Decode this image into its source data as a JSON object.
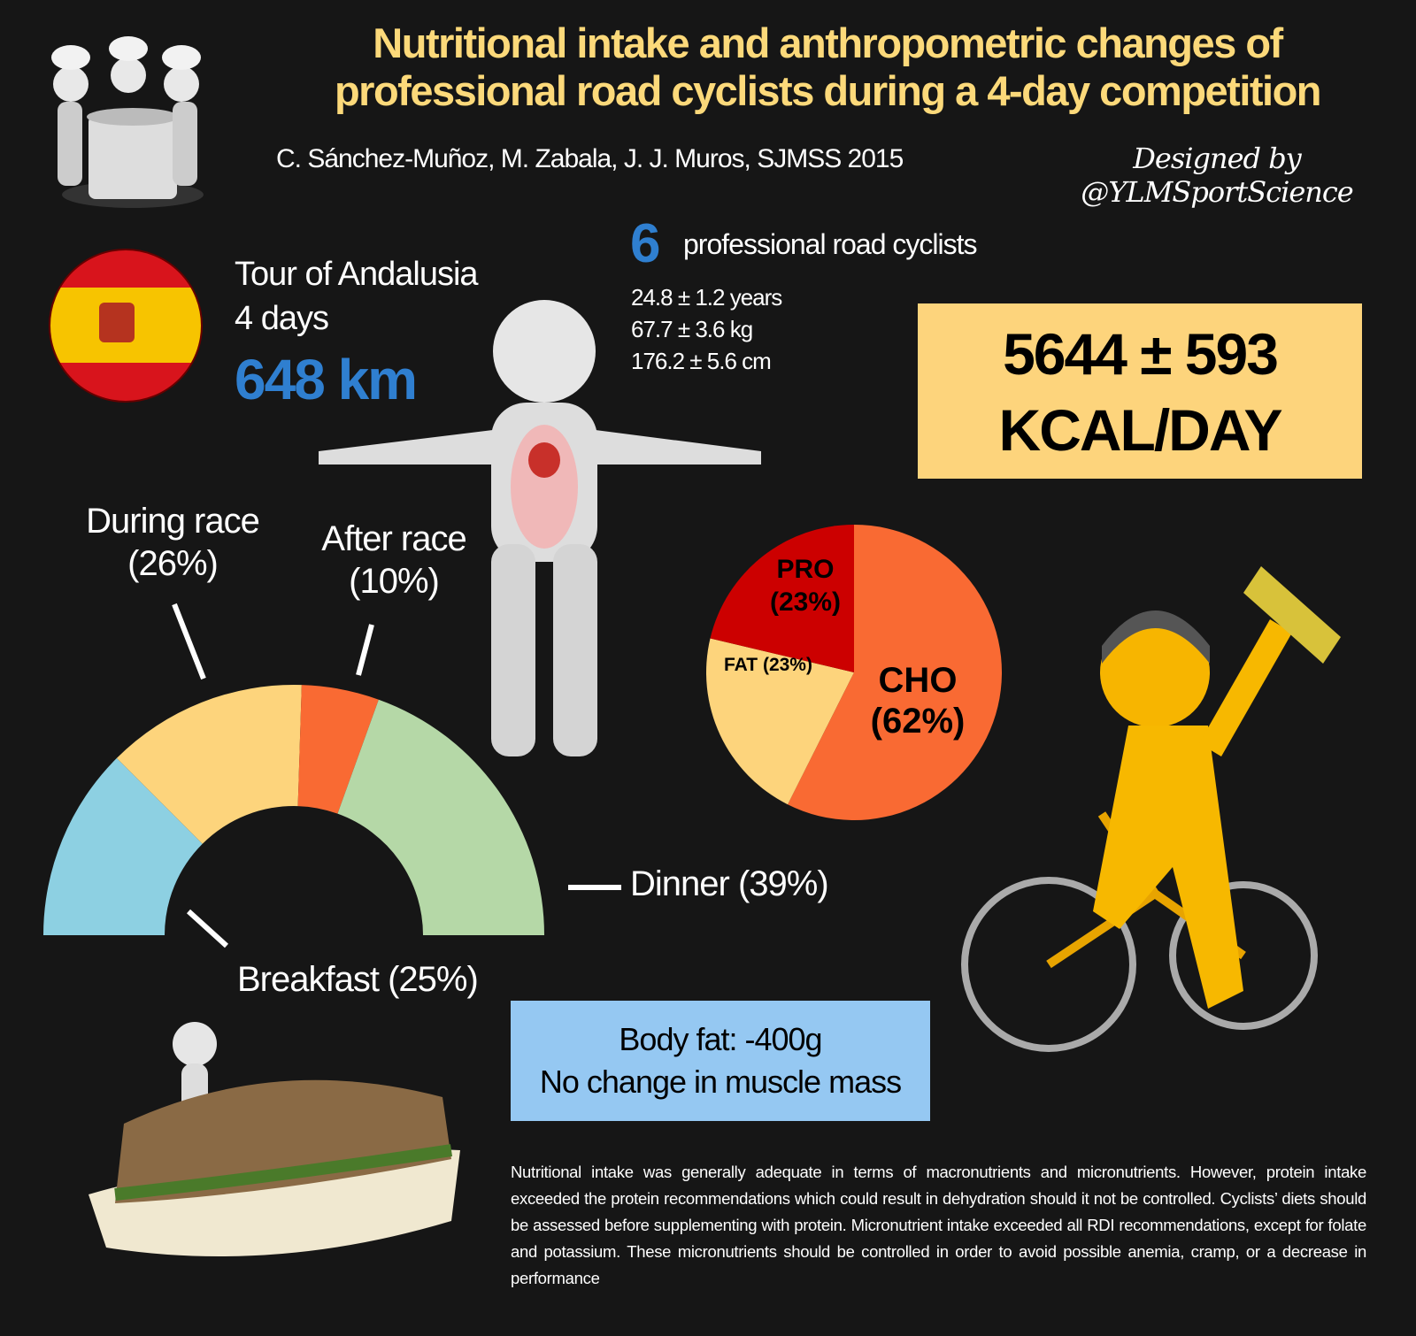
{
  "header": {
    "title": "Nutritional intake and anthropometric changes of professional road cyclists during a 4-day competition",
    "authors": "C. Sánchez-Muñoz, M. Zabala, J. J. Muros, SJMSS 2015",
    "designed_by_line1": "Designed by",
    "designed_by_line2": "@YLMSportScience"
  },
  "race": {
    "name": "Tour of Andalusia",
    "duration": "4 days",
    "distance": "648 km",
    "flag": "spain-flag-icon"
  },
  "subjects": {
    "count": "6",
    "label": "professional road cyclists",
    "age": "24.8 ± 1.2 years",
    "mass": "67.7 ± 3.6 kg",
    "height": "176.2 ± 5.6 cm"
  },
  "energy": {
    "line1": "5644 ± 593",
    "line2": "KCAL/DAY"
  },
  "outcome": {
    "line1": "Body fat: -400g",
    "line2": "No change in muscle mass"
  },
  "conclusion": "Nutritional intake was generally adequate in terms of macronutrients and micronutrients. However, protein intake exceeded the protein recommendations which could result in dehydration should it not be controlled. Cyclists’ diets should be assessed before supplementing with protein. Micronutrient intake exceeded all RDI recommendations, except for folate and potassium. These micronutrients should be controlled in order to avoid possible anemia, cramp, or a decrease in performance",
  "chart_data": [
    {
      "type": "pie",
      "variant": "half-donut",
      "categories": [
        "Breakfast",
        "During race",
        "After race",
        "Dinner"
      ],
      "values": [
        25,
        26,
        10,
        39
      ],
      "labels": [
        "Breakfast (25%)",
        "During race (26%)",
        "After race (10%)",
        "Dinner (39%)"
      ],
      "colors": [
        "#8dd0e2",
        "#fdd47c",
        "#f96a33",
        "#b5d8a7"
      ]
    },
    {
      "type": "pie",
      "categories": [
        "CHO",
        "PRO",
        "FAT"
      ],
      "values": [
        62,
        23,
        23
      ],
      "labels": [
        "CHO",
        "(62%)",
        "PRO",
        "(23%)",
        "FAT (23%)"
      ],
      "colors": [
        "#f96a33",
        "#cc0000",
        "#fdd47c"
      ]
    }
  ]
}
